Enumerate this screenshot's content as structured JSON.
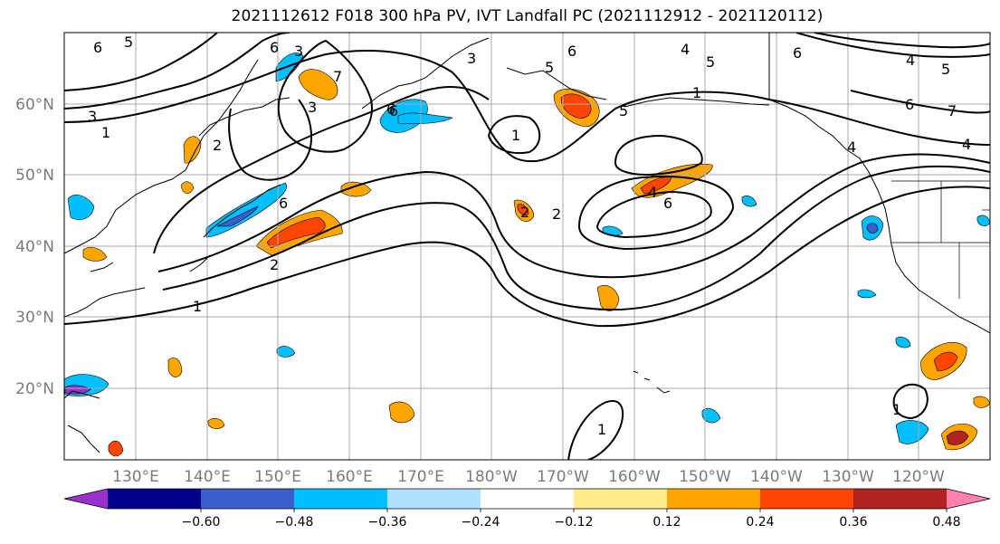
{
  "title": "2021112612 F018 300 hPa PV, IVT Landfall PC (2021112912 - 2021120112)",
  "lat_labels": [
    "60°N",
    "50°N",
    "40°N",
    "30°N",
    "20°N"
  ],
  "lon_labels": [
    "130°E",
    "140°E",
    "150°E",
    "160°E",
    "170°E",
    "180°W",
    "170°W",
    "160°W",
    "150°W",
    "140°W",
    "130°W",
    "120°W"
  ],
  "colorbar": {
    "ticks": [
      "−0.60",
      "−0.48",
      "−0.36",
      "−0.24",
      "−0.12",
      "0.12",
      "0.24",
      "0.36",
      "0.48",
      "0.60"
    ],
    "colors": [
      "#9932cc",
      "#00008b",
      "#3a5fcd",
      "#00bfff",
      "#b0e2ff",
      "#ffffff",
      "#ffec8b",
      "#ffa500",
      "#ff4500",
      "#b22222",
      "#ff82ab"
    ]
  },
  "contour_labels": [
    "6",
    "5",
    "6",
    "3",
    "2",
    "1",
    "7",
    "6",
    "3",
    "6",
    "5",
    "4",
    "5",
    "6",
    "4",
    "5",
    "4",
    "7",
    "6",
    "4",
    "3",
    "6",
    "1",
    "2",
    "1",
    "2",
    "5",
    "6",
    "4",
    "6",
    "1",
    "1",
    "1",
    "2",
    "3"
  ]
}
